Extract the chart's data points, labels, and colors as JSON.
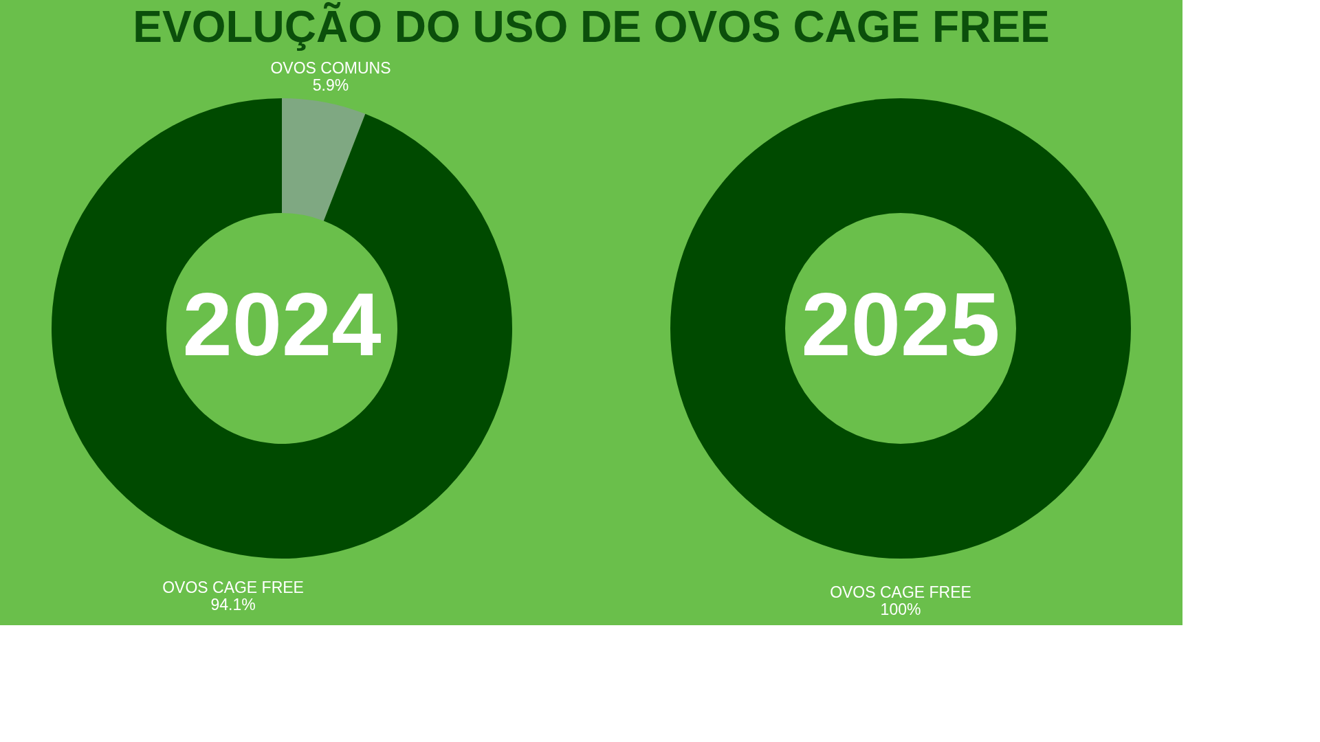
{
  "chart_data": [
    {
      "type": "donut",
      "title": "EVOLUÇÃO DO USO DE OVOS CAGE FREE",
      "categories": [
        "OVOS COMUNS",
        "OVOS CAGE FREE"
      ],
      "values": [
        5.9,
        94.1
      ],
      "colors": [
        "#7fa882",
        "#004a00"
      ],
      "value_labels": [
        "5.9%",
        "94.1%"
      ],
      "annotations": [
        "2024"
      ],
      "legend": false
    },
    {
      "type": "donut",
      "categories": [
        "OVOS CAGE FREE"
      ],
      "values": [
        100
      ],
      "colors": [
        "#004a00"
      ],
      "value_labels": [
        "100%"
      ],
      "annotations": [
        "2025"
      ],
      "legend": false
    }
  ]
}
